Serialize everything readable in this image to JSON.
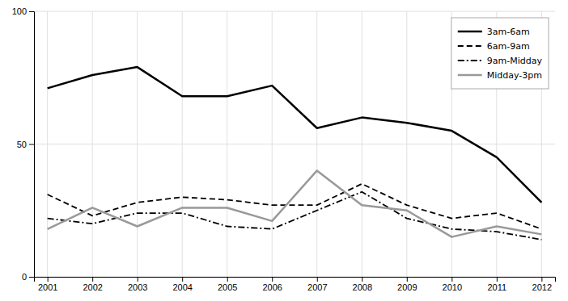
{
  "chart_data": {
    "type": "line",
    "x": [
      2001,
      2002,
      2003,
      2004,
      2005,
      2006,
      2007,
      2008,
      2009,
      2010,
      2011,
      2012
    ],
    "series": [
      {
        "name": "3am-6am",
        "color": "#000000",
        "line_style": "solid",
        "values": [
          71,
          76,
          79,
          68,
          68,
          72,
          56,
          60,
          58,
          55,
          45,
          28
        ]
      },
      {
        "name": "6am-9am",
        "color": "#000000",
        "line_style": "dashed",
        "values": [
          31,
          23,
          28,
          30,
          29,
          27,
          27,
          35,
          27,
          22,
          24,
          18
        ]
      },
      {
        "name": "9am-Midday",
        "color": "#000000",
        "line_style": "dashdot",
        "values": [
          22,
          20,
          24,
          24,
          19,
          18,
          25,
          32,
          22,
          18,
          17,
          14
        ]
      },
      {
        "name": "Midday-3pm",
        "color": "#999999",
        "line_style": "solid",
        "values": [
          18,
          26,
          19,
          26,
          26,
          21,
          40,
          27,
          25,
          15,
          19,
          16
        ]
      }
    ],
    "xlim": [
      2000.7,
      2012.3
    ],
    "xticks": [
      2001,
      2002,
      2003,
      2004,
      2005,
      2006,
      2007,
      2008,
      2009,
      2010,
      2011,
      2012
    ],
    "ylim": [
      0,
      100
    ],
    "yticks": [
      0,
      50,
      100
    ],
    "grid": true,
    "legend": "upper right"
  }
}
